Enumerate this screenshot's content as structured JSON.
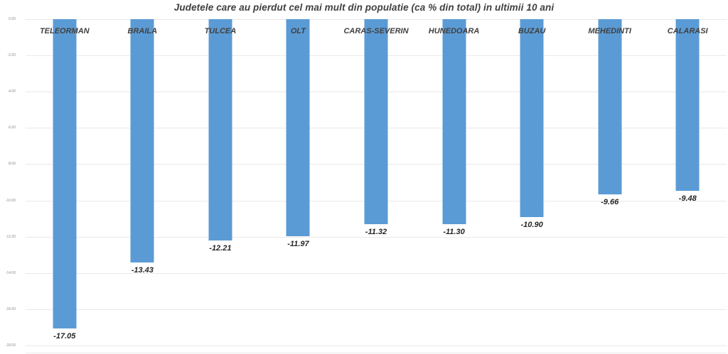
{
  "chart_data": {
    "type": "bar",
    "title": "Judetele care au pierdut cel mai mult din populatie (ca % din total) in ultimii 10 ani",
    "categories": [
      "TELEORMAN",
      "BRAILA",
      "TULCEA",
      "OLT",
      "CARAS-SEVERIN",
      "HUNEDOARA",
      "BUZAU",
      "MEHEDINTI",
      "CALARASI"
    ],
    "values": [
      -17.05,
      -13.43,
      -12.21,
      -11.97,
      -11.32,
      -11.3,
      -10.9,
      -9.66,
      -9.48
    ],
    "value_labels": [
      "-17.05",
      "-13.43",
      "-12.21",
      "-11.97",
      "-11.32",
      "-11.30",
      "-10.90",
      "-9.66",
      "-9.48"
    ],
    "xlabel": "",
    "ylabel": "",
    "y_ticks": [
      "0.00",
      "-2.00",
      "-4.00",
      "-6.00",
      "-8.00",
      "-10.00",
      "-12.00",
      "-14.00",
      "-16.00",
      "-18.00"
    ],
    "ylim": [
      -18,
      0
    ],
    "grid": "horizontal",
    "legend": "none",
    "orientation": "vertical-negative",
    "colors": {
      "bar": "#5B9BD5",
      "gridline": "#e9e9e9",
      "title": "#404040",
      "category_label": "#404040",
      "value_label": "#262626",
      "tick_label": "#8c8c8c",
      "background": "#ffffff"
    }
  }
}
